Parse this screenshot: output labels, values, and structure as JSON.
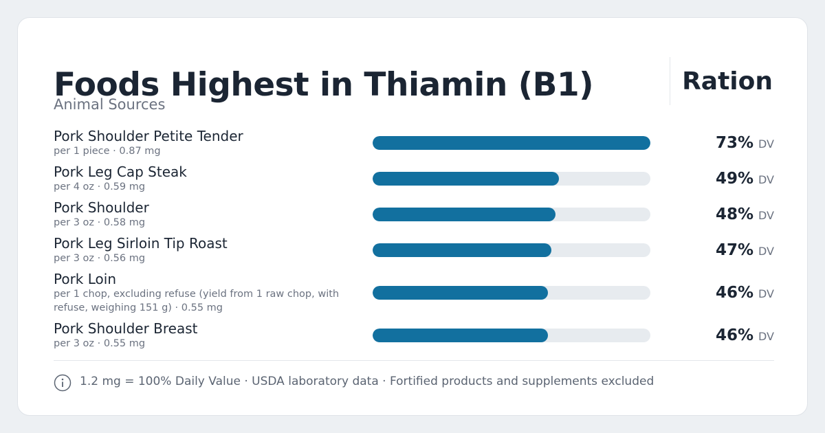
{
  "header": {
    "title": "Foods Highest in Thiamin (B1)",
    "subtitle": "Animal Sources",
    "brand": "Ration"
  },
  "dv_unit": "DV",
  "xlim": [
    0,
    73
  ],
  "bar_color": "#12709f",
  "track_color": "#e7ebef",
  "items": [
    {
      "name": "Pork Shoulder Petite Tender",
      "detail": "per 1 piece · 0.87 mg",
      "percent": 73,
      "percent_label": "73%"
    },
    {
      "name": "Pork Leg Cap Steak",
      "detail": "per 4 oz · 0.59 mg",
      "percent": 49,
      "percent_label": "49%"
    },
    {
      "name": "Pork Shoulder",
      "detail": "per 3 oz · 0.58 mg",
      "percent": 48,
      "percent_label": "48%"
    },
    {
      "name": "Pork Leg Sirloin Tip Roast",
      "detail": "per 3 oz · 0.56 mg",
      "percent": 47,
      "percent_label": "47%"
    },
    {
      "name": "Pork Loin",
      "detail": "per 1 chop, excluding refuse (yield from 1 raw chop, with refuse, weighing 151 g) · 0.55 mg",
      "percent": 46,
      "percent_label": "46%"
    },
    {
      "name": "Pork Shoulder Breast",
      "detail": "per 3 oz · 0.55 mg",
      "percent": 46,
      "percent_label": "46%"
    }
  ],
  "footer": "1.2 mg = 100% Daily Value · USDA laboratory data · Fortified products and supplements excluded"
}
